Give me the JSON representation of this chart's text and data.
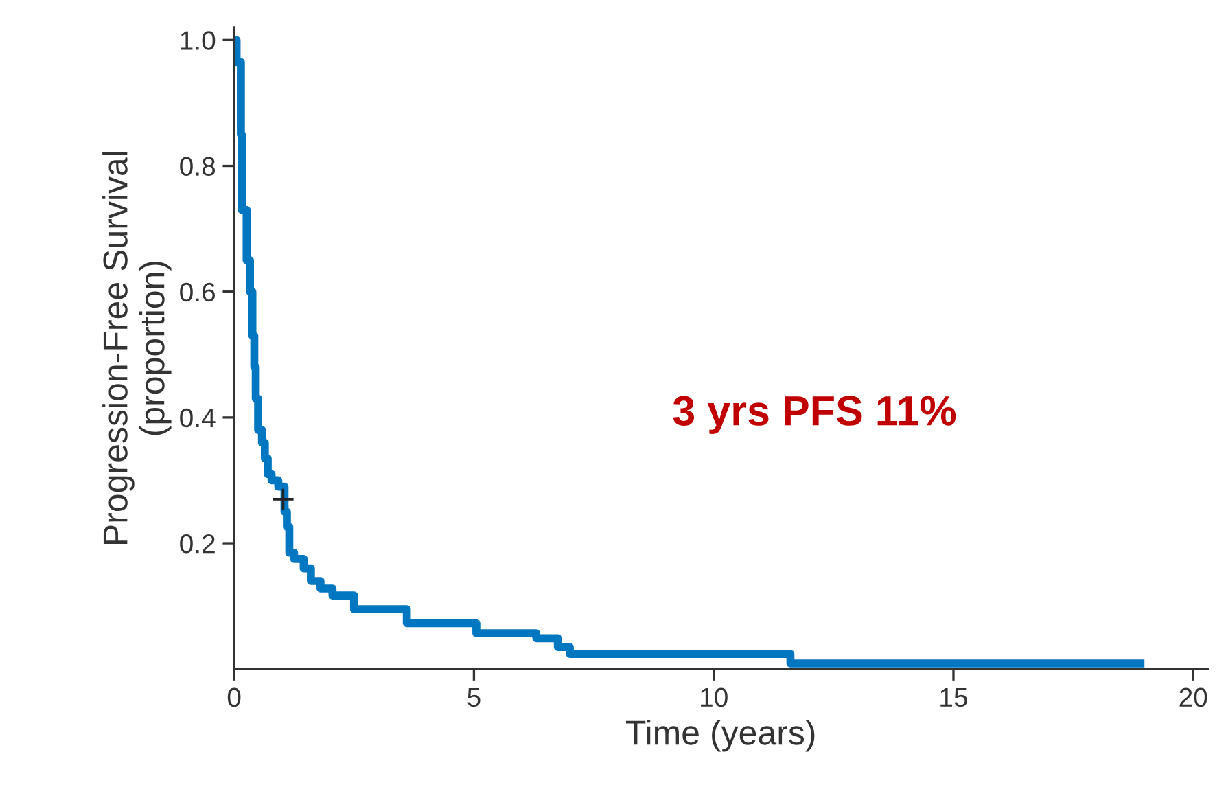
{
  "chart_data": {
    "type": "step",
    "xlabel": "Time (years)",
    "ylabel": "Progression-Free Survival\n(proportion)",
    "annotations": [
      "3 yrs PFS 11%"
    ],
    "xlim": [
      0,
      20.3
    ],
    "ylim": [
      0,
      1.02
    ],
    "xticks": [
      0,
      5,
      10,
      15,
      20
    ],
    "yticks": [
      0.2,
      0.4,
      0.6,
      0.8,
      {
        "value": 1.0,
        "label": "1.0"
      }
    ],
    "grid": false,
    "legend": false,
    "series": [
      {
        "color": "#0077c0",
        "marker": "none",
        "line_style": "solid",
        "x": [
          0,
          0.05,
          0.14,
          0.16,
          0.26,
          0.33,
          0.38,
          0.42,
          0.45,
          0.5,
          0.58,
          0.64,
          0.7,
          0.78,
          0.92,
          1.05,
          1.1,
          1.15,
          1.25,
          1.45,
          1.6,
          1.8,
          2.05,
          2.5,
          3.6,
          5.05,
          6.3,
          6.75,
          7.0,
          11.6,
          18.9
        ],
        "values": [
          1.0,
          0.965,
          0.85,
          0.73,
          0.65,
          0.6,
          0.53,
          0.48,
          0.43,
          0.38,
          0.36,
          0.335,
          0.31,
          0.3,
          0.29,
          0.25,
          0.226,
          0.185,
          0.175,
          0.16,
          0.14,
          0.128,
          0.117,
          0.095,
          0.073,
          0.057,
          0.049,
          0.035,
          0.024,
          0.009,
          0.009
        ]
      },
      {
        "type": "scatter",
        "color": "#222222",
        "marker": "cross",
        "x": [
          1.02
        ],
        "values": [
          0.27
        ]
      }
    ]
  }
}
